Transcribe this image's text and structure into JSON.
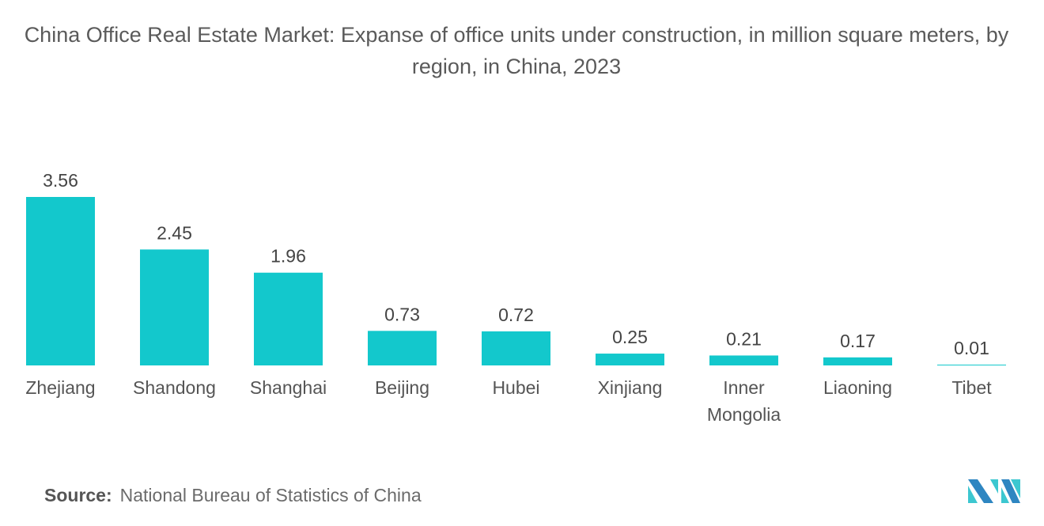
{
  "chart_data": {
    "type": "bar",
    "title": "China Office Real Estate Market: Expanse of office units under construction, in million square meters, by region, in China, 2023",
    "categories": [
      "Zhejiang",
      "Shandong",
      "Shanghai",
      "Beijing",
      "Hubei",
      "Xinjiang",
      "Inner Mongolia",
      "Liaoning",
      "Tibet"
    ],
    "values": [
      3.56,
      2.45,
      1.96,
      0.73,
      0.72,
      0.25,
      0.21,
      0.17,
      0.01
    ],
    "data_labels": [
      "3.56",
      "2.45",
      "1.96",
      "0.73",
      "0.72",
      "0.25",
      "0.21",
      "0.17",
      "0.01"
    ],
    "xlabel": "",
    "ylabel": "",
    "ylim": [
      0,
      3.56
    ],
    "grid": false,
    "bar_color": "#13C8CC"
  },
  "source": {
    "label": "Source:",
    "text": "National Bureau of Statistics of China"
  },
  "logo": {
    "colors": [
      "#2E86C1",
      "#3CC7D0"
    ]
  }
}
